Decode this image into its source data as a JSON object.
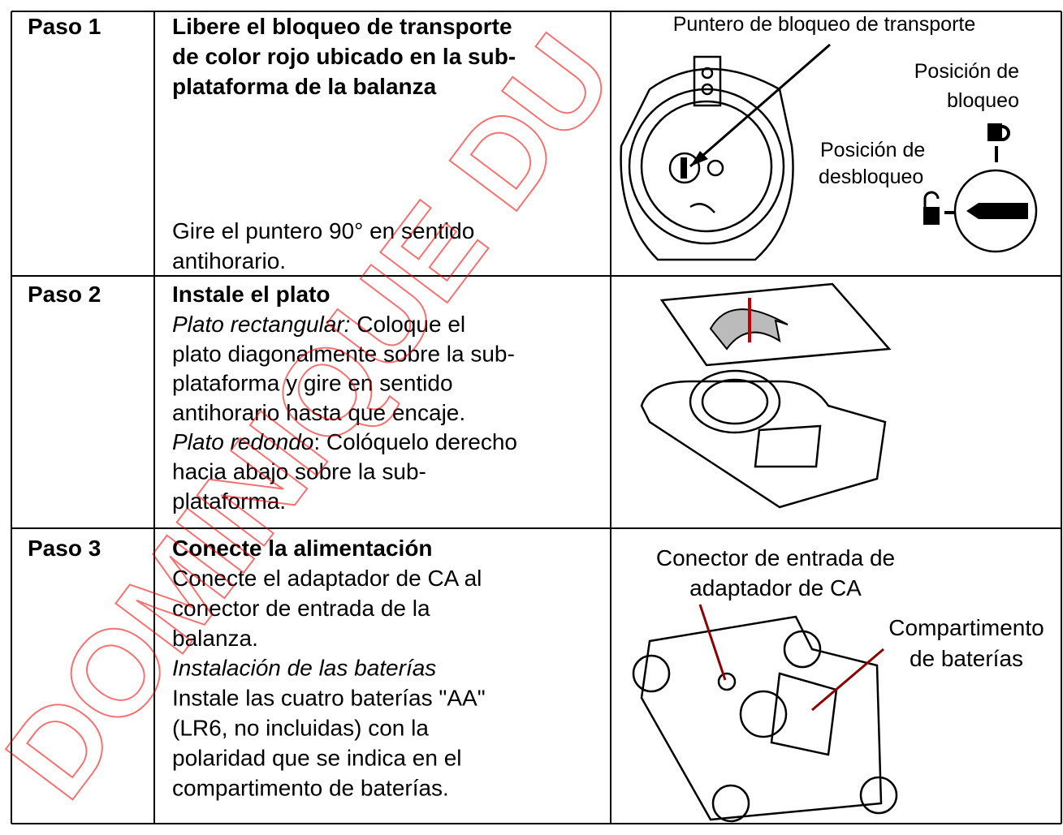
{
  "steps": [
    {
      "label": "Paso 1",
      "title": [
        "Libere el bloqueo de transporte",
        "de color rojo ubicado en la sub-",
        "plataforma de la balanza"
      ],
      "body": [
        "Gire el puntero 90° en sentido",
        "antihorario."
      ]
    },
    {
      "label": "Paso 2",
      "title": [
        "Instale el plato"
      ],
      "body": [
        [
          {
            "text": "Plato rectangular:",
            "italic": true
          },
          {
            "text": " Coloque el"
          }
        ],
        "plato diagonalmente sobre la sub-",
        "plataforma y gire en sentido",
        "antihorario hasta que encaje.",
        [
          {
            "text": "Plato redondo",
            "italic": true
          },
          {
            "text": ": Colóquelo derecho"
          }
        ],
        "hacia abajo sobre la sub-",
        "plataforma."
      ]
    },
    {
      "label": "Paso 3",
      "title": [
        "Conecte la alimentación"
      ],
      "body": [
        "Conecte el adaptador de CA al",
        "conector de entrada de la",
        "balanza.",
        [
          {
            "text": "Instalación de las baterías",
            "italic": true
          }
        ],
        "Instale las cuatro baterías \"AA\"",
        "(LR6, no incluidas) con la",
        "polaridad que se indica en el",
        "compartimento de baterías."
      ]
    }
  ],
  "figure1": {
    "pointer": "Puntero de bloqueo de transporte",
    "lock": [
      "Posición de",
      "bloqueo"
    ],
    "unlock": [
      "Posición de",
      "desbloqueo"
    ]
  },
  "figure3": {
    "connector": [
      "Conector de entrada de",
      "adaptador de CA"
    ],
    "battery": [
      "Compartimento",
      "de baterías"
    ]
  },
  "watermark": "DOMINIQUE DU"
}
